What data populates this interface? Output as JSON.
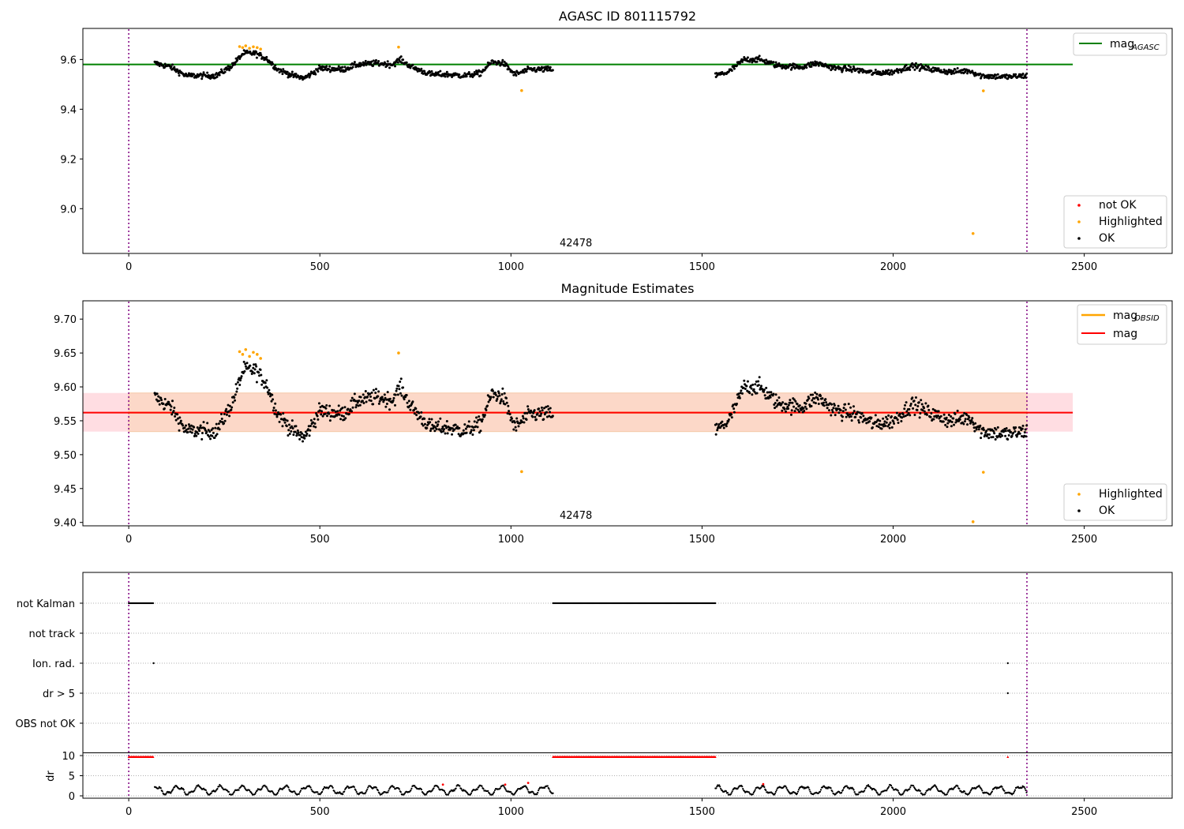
{
  "chart_data": [
    {
      "type": "scatter",
      "title": "AGASC ID 801115792",
      "annotation": "42478",
      "xlim": [
        -120,
        2730
      ],
      "ylim": [
        8.82,
        9.725
      ],
      "xticks": [
        0,
        500,
        1000,
        1500,
        2000,
        2500
      ],
      "yticks": [
        9.0,
        9.2,
        9.4,
        9.6
      ],
      "ytick_labels": [
        "9.0",
        "9.2",
        "9.4",
        "9.6"
      ],
      "grid": false,
      "vlines": [
        0,
        2350
      ],
      "hlines": [
        {
          "name": "mag_AGASC",
          "y": 9.58,
          "x0": -120,
          "x1": 2470,
          "color": "#008000"
        }
      ],
      "legend_lines": {
        "placement": "top-right",
        "entries": [
          {
            "name": "mag",
            "sub": "AGASC",
            "color": "#008000"
          }
        ]
      },
      "legend_points": {
        "placement": "bottom-right",
        "entries": [
          {
            "name": "not OK",
            "color": "#ff0000"
          },
          {
            "name": "Highlighted",
            "color": "#ffa500"
          },
          {
            "name": "OK",
            "color": "#000000"
          }
        ]
      },
      "highlighted": [
        [
          290,
          9.652
        ],
        [
          298,
          9.648
        ],
        [
          306,
          9.655
        ],
        [
          316,
          9.645
        ],
        [
          326,
          9.651
        ],
        [
          336,
          9.648
        ],
        [
          345,
          9.642
        ],
        [
          706,
          9.65
        ],
        [
          1028,
          9.475
        ],
        [
          2209,
          8.9
        ],
        [
          2236,
          9.474
        ]
      ],
      "segments": [
        [
          68,
          1110
        ],
        [
          1535,
          2350
        ]
      ]
    },
    {
      "type": "scatter",
      "title": "Magnitude Estimates",
      "annotation": "42478",
      "xlim": [
        -120,
        2730
      ],
      "ylim": [
        9.395,
        9.727
      ],
      "xticks": [
        0,
        500,
        1000,
        1500,
        2000,
        2500
      ],
      "yticks": [
        9.4,
        9.45,
        9.5,
        9.55,
        9.6,
        9.65,
        9.7
      ],
      "ytick_labels": [
        "9.40",
        "9.45",
        "9.50",
        "9.55",
        "9.60",
        "9.65",
        "9.70"
      ],
      "grid": false,
      "vlines": [
        0,
        2350
      ],
      "mag_line": {
        "y": 9.562,
        "x0": -120,
        "x1": 2470,
        "color": "#ff0000"
      },
      "band_outer": {
        "y0": 9.534,
        "y1": 9.591,
        "x0": -120,
        "x1": 2470,
        "color": "#ffdde2"
      },
      "band_inner": {
        "y0": 9.534,
        "y1": 9.591,
        "x0": 0,
        "x1": 2350,
        "color": "#fcd8c8"
      },
      "legend_lines": {
        "placement": "top-right",
        "entries": [
          {
            "name": "mag",
            "sub": "OBSID",
            "color": "#ffa500"
          },
          {
            "name": "mag",
            "sub": "",
            "color": "#ff0000"
          }
        ]
      },
      "legend_points": {
        "placement": "bottom-right",
        "entries": [
          {
            "name": "Highlighted",
            "color": "#ffa500"
          },
          {
            "name": "OK",
            "color": "#000000"
          }
        ]
      },
      "highlighted": [
        [
          290,
          9.652
        ],
        [
          298,
          9.648
        ],
        [
          306,
          9.655
        ],
        [
          316,
          9.645
        ],
        [
          326,
          9.651
        ],
        [
          336,
          9.648
        ],
        [
          345,
          9.642
        ],
        [
          706,
          9.65
        ],
        [
          1028,
          9.475
        ],
        [
          2209,
          9.401
        ],
        [
          2236,
          9.474
        ]
      ],
      "segments": [
        [
          68,
          1110
        ],
        [
          1535,
          2350
        ]
      ]
    },
    {
      "type": "scatter",
      "xlim": [
        -120,
        2730
      ],
      "categories": [
        "not Kalman",
        "not track",
        "Ion. rad.",
        "dr > 5",
        "OBS not OK"
      ],
      "vlines": [
        0,
        2350
      ],
      "flags": {
        "not Kalman": [
          [
            0,
            65
          ],
          [
            1110,
            1535
          ]
        ],
        "Ion. rad.": [
          65,
          2300
        ],
        "dr > 5": [
          2300
        ]
      },
      "ylabel": "dr",
      "yticks": [
        0,
        5,
        10
      ],
      "ytick_labels": [
        "0",
        "5",
        "10"
      ],
      "dr_ylim": [
        -0.5,
        10.5
      ],
      "dr_clipped_red": [
        [
          0,
          65
        ],
        [
          1110,
          1535
        ],
        [
          2300,
          2300
        ]
      ],
      "dr_red_points": [
        [
          822,
          2.8
        ],
        [
          985,
          2.8
        ],
        [
          1045,
          3.2
        ],
        [
          1660,
          2.9
        ]
      ]
    }
  ]
}
